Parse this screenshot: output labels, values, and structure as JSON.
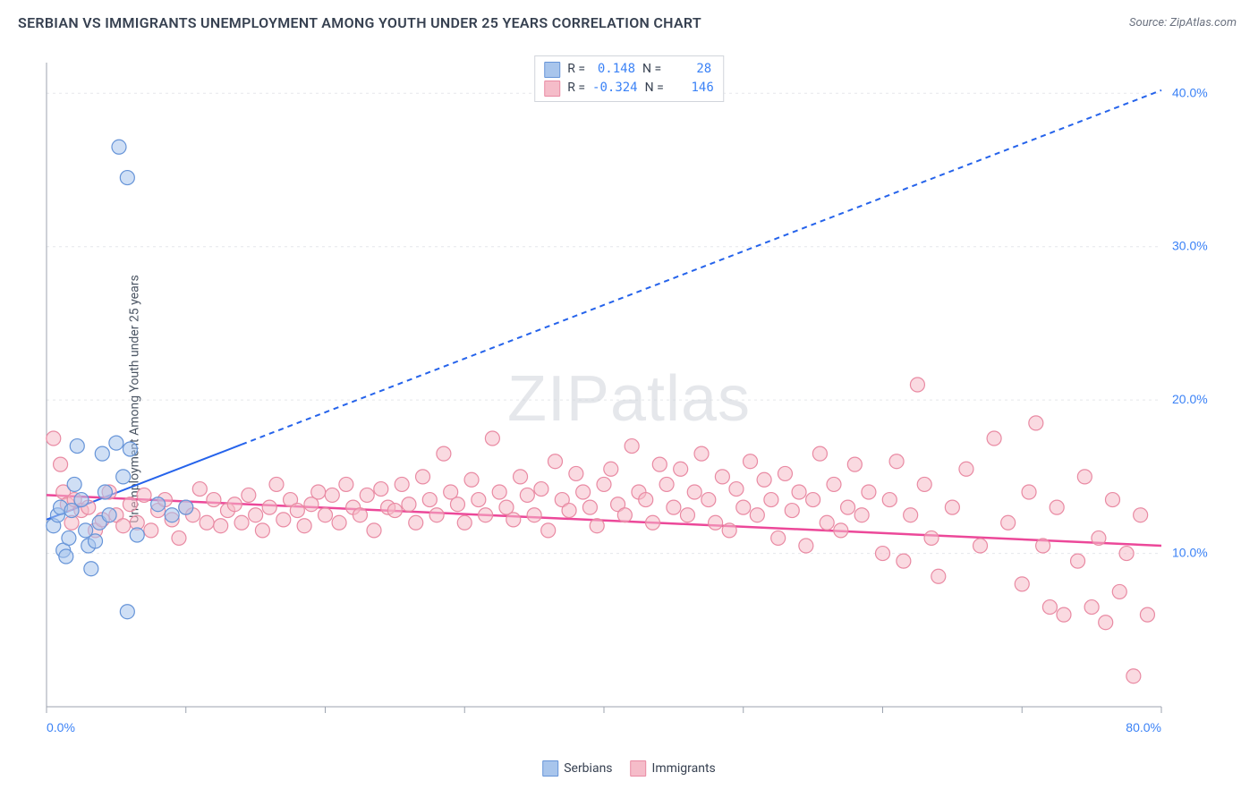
{
  "title": "SERBIAN VS IMMIGRANTS UNEMPLOYMENT AMONG YOUTH UNDER 25 YEARS CORRELATION CHART",
  "source_prefix": "Source: ",
  "source": "ZipAtlas.com",
  "ylabel": "Unemployment Among Youth under 25 years",
  "watermark_a": "ZIP",
  "watermark_b": "atlas",
  "chart": {
    "type": "scatter",
    "xlim": [
      0,
      80
    ],
    "ylim": [
      0,
      42
    ],
    "x_ticks": [
      0,
      10,
      20,
      30,
      40,
      50,
      60,
      70,
      80
    ],
    "x_tick_labels": {
      "0": "0.0%",
      "80": "80.0%"
    },
    "y_gridlines": [
      10,
      20,
      30,
      40
    ],
    "y_tick_labels": {
      "10": "10.0%",
      "20": "20.0%",
      "30": "30.0%",
      "40": "40.0%"
    },
    "grid_color": "#e5e7eb",
    "axis_color": "#9ca3af",
    "background_color": "#ffffff",
    "marker_radius": 8,
    "marker_opacity": 0.55,
    "series": [
      {
        "name": "Serbians",
        "color_fill": "#a8c5ec",
        "color_stroke": "#6694d8",
        "R": "0.148",
        "N": "28",
        "trend": {
          "x1": 0,
          "y1": 12.2,
          "x2": 80,
          "y2": 40.2,
          "solid_until_x": 14,
          "color": "#2563eb",
          "width": 2,
          "dash": "6,5"
        },
        "points": [
          [
            0.5,
            11.8
          ],
          [
            0.8,
            12.5
          ],
          [
            1.0,
            13.0
          ],
          [
            1.2,
            10.2
          ],
          [
            1.4,
            9.8
          ],
          [
            1.6,
            11.0
          ],
          [
            1.8,
            12.8
          ],
          [
            2.0,
            14.5
          ],
          [
            2.2,
            17.0
          ],
          [
            2.5,
            13.5
          ],
          [
            2.8,
            11.5
          ],
          [
            3.0,
            10.5
          ],
          [
            3.2,
            9.0
          ],
          [
            3.5,
            10.8
          ],
          [
            3.8,
            12.0
          ],
          [
            4.0,
            16.5
          ],
          [
            4.2,
            14.0
          ],
          [
            4.5,
            12.5
          ],
          [
            5.0,
            17.2
          ],
          [
            5.5,
            15.0
          ],
          [
            5.8,
            6.2
          ],
          [
            6.0,
            16.8
          ],
          [
            6.5,
            11.2
          ],
          [
            5.2,
            36.5
          ],
          [
            5.8,
            34.5
          ],
          [
            8.0,
            13.2
          ],
          [
            9.0,
            12.5
          ],
          [
            10.0,
            13.0
          ]
        ]
      },
      {
        "name": "Immigrants",
        "color_fill": "#f5bcc9",
        "color_stroke": "#e98aa3",
        "R": "-0.324",
        "N": "146",
        "trend": {
          "x1": 0,
          "y1": 13.8,
          "x2": 80,
          "y2": 10.5,
          "solid_until_x": 80,
          "color": "#ec4899",
          "width": 2.5,
          "dash": ""
        },
        "points": [
          [
            0.5,
            17.5
          ],
          [
            1.0,
            15.8
          ],
          [
            1.2,
            14.0
          ],
          [
            1.5,
            13.2
          ],
          [
            1.8,
            12.0
          ],
          [
            2.0,
            13.5
          ],
          [
            2.5,
            12.8
          ],
          [
            3.0,
            13.0
          ],
          [
            3.5,
            11.5
          ],
          [
            4.0,
            12.2
          ],
          [
            4.5,
            14.0
          ],
          [
            5.0,
            12.5
          ],
          [
            5.5,
            11.8
          ],
          [
            6.0,
            13.2
          ],
          [
            6.5,
            12.0
          ],
          [
            7.0,
            13.8
          ],
          [
            7.5,
            11.5
          ],
          [
            8.0,
            12.8
          ],
          [
            8.5,
            13.5
          ],
          [
            9.0,
            12.2
          ],
          [
            9.5,
            11.0
          ],
          [
            10.0,
            13.0
          ],
          [
            10.5,
            12.5
          ],
          [
            11.0,
            14.2
          ],
          [
            11.5,
            12.0
          ],
          [
            12.0,
            13.5
          ],
          [
            12.5,
            11.8
          ],
          [
            13.0,
            12.8
          ],
          [
            13.5,
            13.2
          ],
          [
            14.0,
            12.0
          ],
          [
            14.5,
            13.8
          ],
          [
            15.0,
            12.5
          ],
          [
            15.5,
            11.5
          ],
          [
            16.0,
            13.0
          ],
          [
            16.5,
            14.5
          ],
          [
            17.0,
            12.2
          ],
          [
            17.5,
            13.5
          ],
          [
            18.0,
            12.8
          ],
          [
            18.5,
            11.8
          ],
          [
            19.0,
            13.2
          ],
          [
            19.5,
            14.0
          ],
          [
            20.0,
            12.5
          ],
          [
            20.5,
            13.8
          ],
          [
            21.0,
            12.0
          ],
          [
            21.5,
            14.5
          ],
          [
            22.0,
            13.0
          ],
          [
            22.5,
            12.5
          ],
          [
            23.0,
            13.8
          ],
          [
            23.5,
            11.5
          ],
          [
            24.0,
            14.2
          ],
          [
            24.5,
            13.0
          ],
          [
            25.0,
            12.8
          ],
          [
            25.5,
            14.5
          ],
          [
            26.0,
            13.2
          ],
          [
            26.5,
            12.0
          ],
          [
            27.0,
            15.0
          ],
          [
            27.5,
            13.5
          ],
          [
            28.0,
            12.5
          ],
          [
            28.5,
            16.5
          ],
          [
            29.0,
            14.0
          ],
          [
            29.5,
            13.2
          ],
          [
            30.0,
            12.0
          ],
          [
            30.5,
            14.8
          ],
          [
            31.0,
            13.5
          ],
          [
            31.5,
            12.5
          ],
          [
            32.0,
            17.5
          ],
          [
            32.5,
            14.0
          ],
          [
            33.0,
            13.0
          ],
          [
            33.5,
            12.2
          ],
          [
            34.0,
            15.0
          ],
          [
            34.5,
            13.8
          ],
          [
            35.0,
            12.5
          ],
          [
            35.5,
            14.2
          ],
          [
            36.0,
            11.5
          ],
          [
            36.5,
            16.0
          ],
          [
            37.0,
            13.5
          ],
          [
            37.5,
            12.8
          ],
          [
            38.0,
            15.2
          ],
          [
            38.5,
            14.0
          ],
          [
            39.0,
            13.0
          ],
          [
            39.5,
            11.8
          ],
          [
            40.0,
            14.5
          ],
          [
            40.5,
            15.5
          ],
          [
            41.0,
            13.2
          ],
          [
            41.5,
            12.5
          ],
          [
            42.0,
            17.0
          ],
          [
            42.5,
            14.0
          ],
          [
            43.0,
            13.5
          ],
          [
            43.5,
            12.0
          ],
          [
            44.0,
            15.8
          ],
          [
            44.5,
            14.5
          ],
          [
            45.0,
            13.0
          ],
          [
            45.5,
            15.5
          ],
          [
            46.0,
            12.5
          ],
          [
            46.5,
            14.0
          ],
          [
            47.0,
            16.5
          ],
          [
            47.5,
            13.5
          ],
          [
            48.0,
            12.0
          ],
          [
            48.5,
            15.0
          ],
          [
            49.0,
            11.5
          ],
          [
            49.5,
            14.2
          ],
          [
            50.0,
            13.0
          ],
          [
            50.5,
            16.0
          ],
          [
            51.0,
            12.5
          ],
          [
            51.5,
            14.8
          ],
          [
            52.0,
            13.5
          ],
          [
            52.5,
            11.0
          ],
          [
            53.0,
            15.2
          ],
          [
            53.5,
            12.8
          ],
          [
            54.0,
            14.0
          ],
          [
            54.5,
            10.5
          ],
          [
            55.0,
            13.5
          ],
          [
            55.5,
            16.5
          ],
          [
            56.0,
            12.0
          ],
          [
            56.5,
            14.5
          ],
          [
            57.0,
            11.5
          ],
          [
            57.5,
            13.0
          ],
          [
            58.0,
            15.8
          ],
          [
            58.5,
            12.5
          ],
          [
            59.0,
            14.0
          ],
          [
            60.0,
            10.0
          ],
          [
            60.5,
            13.5
          ],
          [
            61.0,
            16.0
          ],
          [
            61.5,
            9.5
          ],
          [
            62.0,
            12.5
          ],
          [
            62.5,
            21.0
          ],
          [
            63.0,
            14.5
          ],
          [
            63.5,
            11.0
          ],
          [
            64.0,
            8.5
          ],
          [
            65.0,
            13.0
          ],
          [
            66.0,
            15.5
          ],
          [
            67.0,
            10.5
          ],
          [
            68.0,
            17.5
          ],
          [
            69.0,
            12.0
          ],
          [
            70.0,
            8.0
          ],
          [
            70.5,
            14.0
          ],
          [
            71.0,
            18.5
          ],
          [
            71.5,
            10.5
          ],
          [
            72.0,
            6.5
          ],
          [
            72.5,
            13.0
          ],
          [
            73.0,
            6.0
          ],
          [
            74.0,
            9.5
          ],
          [
            74.5,
            15.0
          ],
          [
            75.0,
            6.5
          ],
          [
            75.5,
            11.0
          ],
          [
            76.0,
            5.5
          ],
          [
            76.5,
            13.5
          ],
          [
            77.0,
            7.5
          ],
          [
            77.5,
            10.0
          ],
          [
            78.0,
            2.0
          ],
          [
            78.5,
            12.5
          ],
          [
            79.0,
            6.0
          ]
        ]
      }
    ]
  },
  "legend_top": {
    "r_label": "R =",
    "n_label": "N ="
  },
  "legend_bottom": [
    {
      "label": "Serbians",
      "fill": "#a8c5ec",
      "stroke": "#6694d8"
    },
    {
      "label": "Immigrants",
      "fill": "#f5bcc9",
      "stroke": "#e98aa3"
    }
  ]
}
